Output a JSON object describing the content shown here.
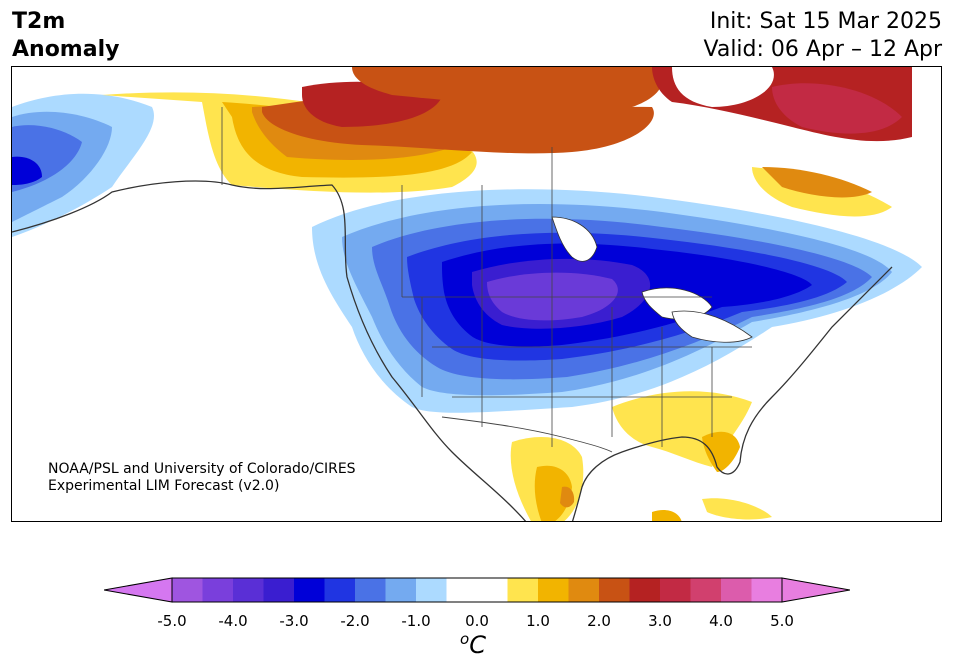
{
  "title": {
    "line1": "T2m",
    "line2": "Anomaly"
  },
  "dates": {
    "init": "Init: Sat 15 Mar 2025",
    "valid": "Valid: 06 Apr – 12 Apr"
  },
  "credit": {
    "line1": "NOAA/PSL and University of Colorado/CIRES",
    "line2": "Experimental LIM Forecast (v2.0)"
  },
  "colorbar": {
    "unit_base": "C",
    "unit_sup": "o",
    "tick_labels": [
      "-5.0",
      "-4.0",
      "-3.0",
      "-2.0",
      "-1.0",
      "0.0",
      "1.0",
      "2.0",
      "3.0",
      "4.0",
      "5.0"
    ],
    "tick_values": [
      -5,
      -4,
      -3,
      -2,
      -1,
      0,
      1,
      2,
      3,
      4,
      5
    ],
    "min": -5,
    "max": 5,
    "interval": 0.5,
    "colors": [
      "#9f55e0",
      "#7a3fdc",
      "#5a2fd6",
      "#3a1ed0",
      "#0000d8",
      "#2035e2",
      "#4a72e6",
      "#74aaf0",
      "#acdaff",
      "#ffffff",
      "#ffffff",
      "#ffe44e",
      "#f2b400",
      "#e08a10",
      "#c85214",
      "#b52222",
      "#c22a44",
      "#d1406e",
      "#dc5cac",
      "#e87ee0"
    ],
    "under_color": "#d577f0",
    "over_color": "#e87ee0"
  },
  "map": {
    "region": "North America",
    "land_fill_default": "#ffffff",
    "anomaly_colors": {
      "strong_cold": "#6a3ad8",
      "cold": "#0000d0",
      "cool": "#4a72e6",
      "slight_cool": "#acdaff",
      "slight_warm": "#ffe44e",
      "warm": "#f2b400",
      "very_warm": "#c85214",
      "hot": "#b52222"
    }
  }
}
